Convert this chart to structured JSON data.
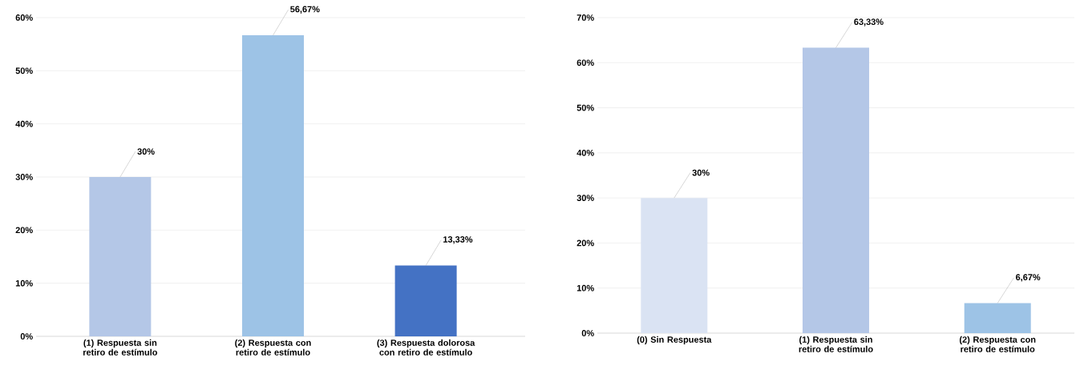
{
  "chart_data": [
    {
      "type": "bar",
      "categories": [
        "(1) Respuesta sin retiro de estímulo",
        "(2) Respuesta con retiro de estímulo",
        "(3) Respuesta dolorosa con retiro de estímulo"
      ],
      "values": [
        30,
        56.67,
        13.33
      ],
      "colors": [
        "#b4c7e7",
        "#9dc3e6",
        "#4472c4"
      ],
      "value_labels": [
        "30%",
        "56,67%",
        "13,33%"
      ],
      "ylim": [
        0,
        60
      ],
      "yticks": [
        {
          "value": 0,
          "label": "0%"
        },
        {
          "value": 10,
          "label": "10%"
        },
        {
          "value": 20,
          "label": "20%"
        },
        {
          "value": 30,
          "label": "30%"
        },
        {
          "value": 40,
          "label": "40%"
        },
        {
          "value": 50,
          "label": "50%"
        },
        {
          "value": 60,
          "label": "60%"
        }
      ],
      "grid": "y"
    },
    {
      "type": "bar",
      "categories": [
        "(0) Sin Respuesta",
        "(1) Respuesta sin retiro de estímulo",
        "(2) Respuesta con retiro de estímulo"
      ],
      "values": [
        30,
        63.33,
        6.67
      ],
      "colors": [
        "#dae3f3",
        "#b4c7e7",
        "#9dc3e6"
      ],
      "value_labels": [
        "30%",
        "63,33%",
        "6,67%"
      ],
      "ylim": [
        0,
        70
      ],
      "yticks": [
        {
          "value": 0,
          "label": "0%"
        },
        {
          "value": 10,
          "label": "10%"
        },
        {
          "value": 20,
          "label": "20%"
        },
        {
          "value": 30,
          "label": "30%"
        },
        {
          "value": 40,
          "label": "40%"
        },
        {
          "value": 50,
          "label": "50%"
        },
        {
          "value": 60,
          "label": "60%"
        },
        {
          "value": 70,
          "label": "70%"
        }
      ],
      "grid": "y"
    }
  ]
}
